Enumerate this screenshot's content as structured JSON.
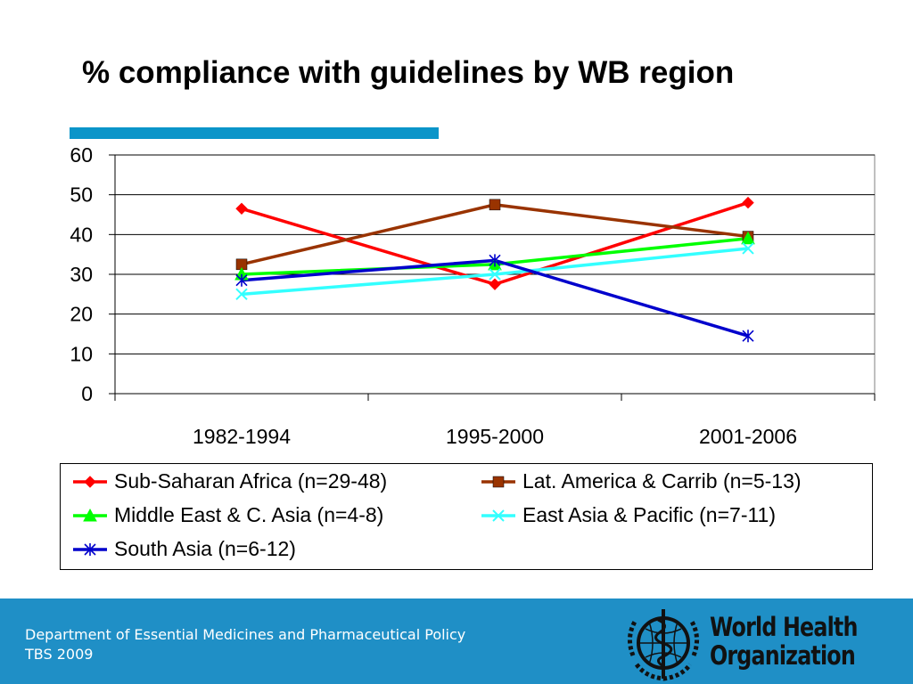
{
  "slide": {
    "title": "% compliance with guidelines by WB region"
  },
  "footer": {
    "line1": "Department of Essential Medicines and Pharmaceutical Policy",
    "line2": "TBS 2009",
    "logo_line1": "World Health",
    "logo_line2": "Organization",
    "logo_icon": "who-emblem-icon"
  },
  "colors": {
    "title_rule": "#0b95c9",
    "footer_band": "#1f8fc6"
  },
  "chart_data": {
    "type": "line",
    "title": "",
    "xlabel": "",
    "ylabel": "",
    "categories": [
      "1982-1994",
      "1995-2000",
      "2001-2006"
    ],
    "ylim": [
      0,
      60
    ],
    "yticks": [
      0,
      10,
      20,
      30,
      40,
      50,
      60
    ],
    "grid": true,
    "legend_position": "bottom",
    "series": [
      {
        "name": "Sub-Saharan Africa (n=29-48)",
        "values": [
          46.5,
          27.5,
          48
        ],
        "color": "#ff0000",
        "marker": "diamond"
      },
      {
        "name": "Lat. America & Carrib (n=5-13)",
        "values": [
          32.5,
          47.5,
          39.5
        ],
        "color": "#993300",
        "marker": "square"
      },
      {
        "name": "Middle East & C. Asia (n=4-8)",
        "values": [
          30,
          32.5,
          39
        ],
        "color": "#00ff00",
        "marker": "triangle"
      },
      {
        "name": "East Asia & Pacific (n=7-11)",
        "values": [
          25,
          30,
          36.5
        ],
        "color": "#33ffff",
        "marker": "x"
      },
      {
        "name": "South Asia (n=6-12)",
        "values": [
          28.5,
          33.5,
          14.5
        ],
        "color": "#0000cc",
        "marker": "star"
      }
    ]
  }
}
